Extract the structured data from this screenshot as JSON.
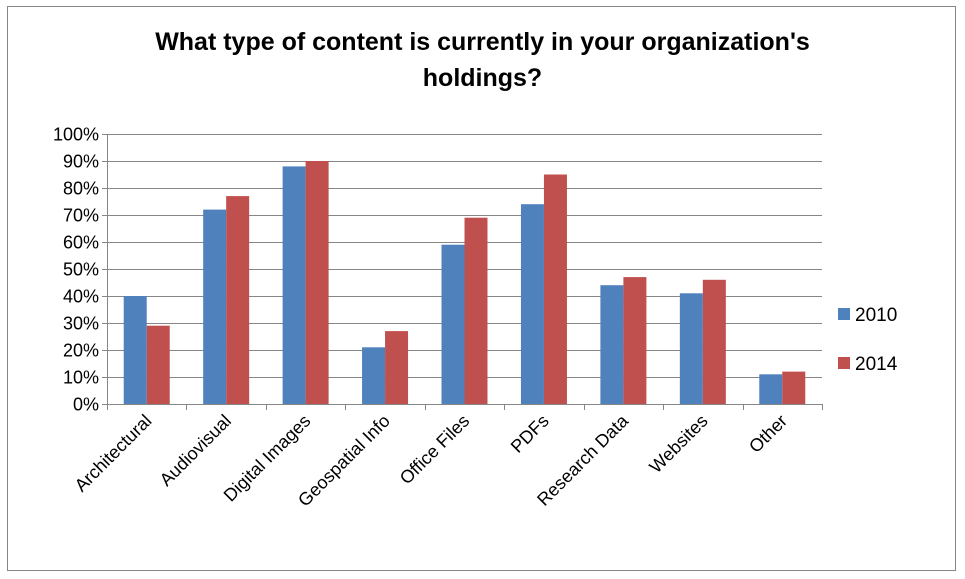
{
  "chart_data": {
    "type": "bar",
    "title": "What type of content is currently in your organization's holdings?",
    "xlabel": "",
    "ylabel": "",
    "categories": [
      "Architectural",
      "Audiovisual",
      "Digital Images",
      "Geospatial Info",
      "Office Files",
      "PDFs",
      "Research Data",
      "Websites",
      "Other"
    ],
    "series": [
      {
        "name": "2010",
        "color": "#4F81BD",
        "values": [
          0.4,
          0.72,
          0.88,
          0.21,
          0.59,
          0.74,
          0.44,
          0.41,
          0.11
        ]
      },
      {
        "name": "2014",
        "color": "#C0504D",
        "values": [
          0.29,
          0.77,
          0.9,
          0.27,
          0.69,
          0.85,
          0.47,
          0.46,
          0.12
        ]
      }
    ],
    "ylim": [
      0,
      1
    ],
    "yticks": [
      "0%",
      "10%",
      "20%",
      "30%",
      "40%",
      "50%",
      "60%",
      "70%",
      "80%",
      "90%",
      "100%"
    ],
    "grid": true,
    "legend": "right"
  }
}
